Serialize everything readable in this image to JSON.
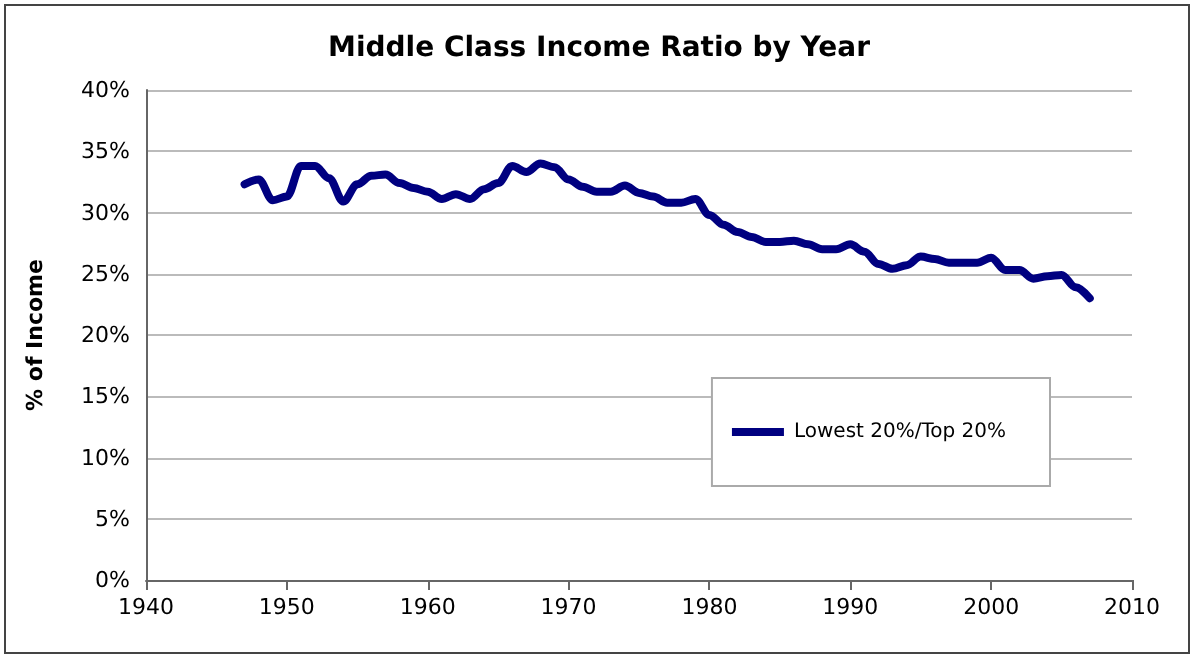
{
  "chart_data": {
    "type": "line",
    "title": "Middle Class Income Ratio by Year",
    "ylabel": "% of Income",
    "x": [
      1947,
      1948,
      1949,
      1950,
      1951,
      1952,
      1953,
      1954,
      1955,
      1956,
      1957,
      1958,
      1959,
      1960,
      1961,
      1962,
      1963,
      1964,
      1965,
      1966,
      1967,
      1968,
      1969,
      1970,
      1971,
      1972,
      1973,
      1974,
      1975,
      1976,
      1977,
      1978,
      1979,
      1980,
      1981,
      1982,
      1983,
      1984,
      1985,
      1986,
      1987,
      1988,
      1989,
      1990,
      1991,
      1992,
      1993,
      1994,
      1995,
      1996,
      1997,
      1998,
      1999,
      2000,
      2001,
      2002,
      2003,
      2004,
      2005,
      2006,
      2007
    ],
    "series": [
      {
        "name": "Lowest 20%/Top 20%",
        "color": "#000080",
        "values": [
          32.3,
          32.7,
          31.0,
          31.3,
          33.8,
          33.8,
          32.8,
          30.9,
          32.3,
          33.0,
          33.1,
          32.4,
          32.0,
          31.7,
          31.1,
          31.5,
          31.1,
          31.9,
          32.4,
          33.8,
          33.3,
          34.0,
          33.7,
          32.7,
          32.1,
          31.7,
          31.7,
          32.2,
          31.6,
          31.3,
          30.8,
          30.8,
          31.1,
          29.8,
          29.0,
          28.4,
          28.0,
          27.6,
          27.6,
          27.7,
          27.4,
          27.0,
          27.0,
          27.4,
          26.8,
          25.8,
          25.4,
          25.7,
          26.4,
          26.2,
          25.9,
          25.9,
          25.9,
          26.3,
          25.3,
          25.3,
          24.6,
          24.8,
          24.9,
          23.9,
          23.0
        ]
      }
    ],
    "xlim": [
      1940,
      2010
    ],
    "xticks": [
      1940,
      1950,
      1960,
      1970,
      1980,
      1990,
      2000,
      2010
    ],
    "ylim": [
      0,
      40
    ],
    "yticks": [
      {
        "value": 0,
        "label": "0%"
      },
      {
        "value": 5,
        "label": "5%"
      },
      {
        "value": 10,
        "label": "10%"
      },
      {
        "value": 15,
        "label": "15%"
      },
      {
        "value": 20,
        "label": "20%"
      },
      {
        "value": 25,
        "label": "25%"
      },
      {
        "value": 30,
        "label": "30%"
      },
      {
        "value": 35,
        "label": "35%"
      },
      {
        "value": 40,
        "label": "40%"
      }
    ],
    "grid": "y",
    "legend": "bottom right",
    "marker": "none",
    "line_style": "solid"
  }
}
